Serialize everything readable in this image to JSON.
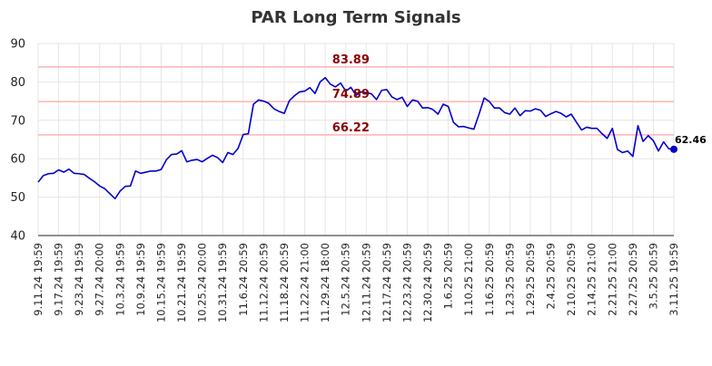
{
  "chart_data": {
    "type": "line",
    "title": "PAR Long Term Signals",
    "xlabel": "",
    "ylabel": "",
    "ylim": [
      40,
      90
    ],
    "yticks": [
      40,
      50,
      60,
      70,
      80,
      90
    ],
    "grid": true,
    "x_tick_labels": [
      "9.11.24 19:59",
      "9.17.24 19:59",
      "9.23.24 19:59",
      "9.27.24 20:00",
      "10.3.24 19:59",
      "10.9.24 19:59",
      "10.15.24 19:59",
      "10.21.24 19:59",
      "10.25.24 20:00",
      "10.31.24 19:59",
      "11.6.24 20:59",
      "11.12.24 20:59",
      "11.18.24 20:59",
      "11.22.24 21:00",
      "11.29.24 18:00",
      "12.5.24 20:59",
      "12.11.24 20:59",
      "12.17.24 20:59",
      "12.23.24 20:59",
      "12.30.24 20:59",
      "1.6.25 20:59",
      "1.10.25 21:00",
      "1.16.25 20:59",
      "1.23.25 20:59",
      "1.29.25 20:59",
      "2.4.25 20:59",
      "2.10.25 20:59",
      "2.14.25 21:00",
      "2.21.25 21:00",
      "2.27.25 20:59",
      "3.5.25 20:59",
      "3.11.25 19:59"
    ],
    "horizontal_lines": [
      {
        "value": 83.89,
        "label": "83.89",
        "color": "#ffb3b3"
      },
      {
        "value": 74.89,
        "label": "74.89",
        "color": "#ffb3b3"
      },
      {
        "value": 66.22,
        "label": "66.22",
        "color": "#ffb3b3"
      }
    ],
    "series": [
      {
        "color": "#0000cc",
        "values": [
          53.9,
          55.6,
          56.1,
          56.2,
          57.1,
          56.5,
          57.3,
          56.2,
          56.1,
          55.9,
          54.9,
          54.0,
          52.9,
          52.2,
          50.9,
          49.6,
          51.6,
          52.8,
          52.9,
          56.8,
          56.2,
          56.5,
          56.8,
          56.8,
          57.2,
          59.7,
          61.1,
          61.2,
          62.1,
          59.2,
          59.6,
          59.8,
          59.2,
          60.1,
          60.9,
          60.3,
          59.0,
          61.6,
          61.1,
          62.7,
          66.3,
          66.5,
          74.2,
          75.3,
          75.0,
          74.4,
          73.0,
          72.3,
          71.8,
          75.1,
          76.4,
          77.4,
          77.6,
          78.5,
          77.0,
          80.0,
          81.1,
          79.4,
          78.7,
          79.7,
          77.6,
          78.6,
          76.5,
          77.4,
          77.2,
          76.9,
          75.4,
          77.8,
          78.0,
          76.1,
          75.4,
          76.0,
          73.6,
          75.3,
          75.0,
          73.2,
          73.3,
          72.8,
          71.6,
          74.2,
          73.6,
          69.5,
          68.3,
          68.4,
          68.0,
          67.7,
          71.6,
          75.8,
          74.9,
          73.2,
          73.2,
          72.0,
          71.6,
          73.2,
          71.2,
          72.5,
          72.4,
          73.0,
          72.6,
          71.0,
          71.7,
          72.3,
          71.8,
          70.9,
          71.6,
          69.5,
          67.5,
          68.2,
          67.9,
          67.9,
          66.5,
          65.3,
          67.9,
          62.4,
          61.6,
          62.0,
          60.6,
          68.6,
          64.5,
          66.0,
          64.7,
          62.0,
          64.4,
          62.6,
          62.46
        ],
        "last_label": "62.46"
      }
    ]
  }
}
